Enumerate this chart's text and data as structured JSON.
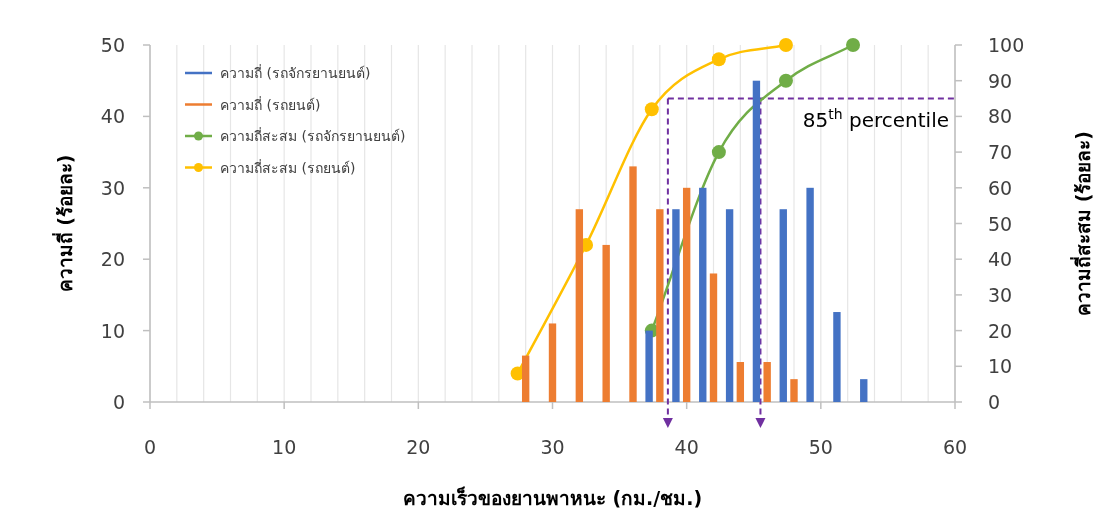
{
  "chart_data": {
    "type": "bar",
    "xlabel": "ความเร็วของยานพาหนะ (กม./ชม.)",
    "ylabel": "ความถี่ (ร้อยละ)",
    "y2label": "ความถี่สะสม (ร้อยละ)",
    "xlim": [
      0,
      60
    ],
    "xticks": [
      0,
      {
        "value": 2,
        "label": null
      },
      {
        "value": 4,
        "label": null
      },
      {
        "value": 6,
        "label": null
      },
      {
        "value": 8,
        "label": null
      },
      10,
      {
        "value": 12,
        "label": null
      },
      {
        "value": 14,
        "label": null
      },
      {
        "value": 16,
        "label": null
      },
      {
        "value": 18,
        "label": null
      },
      20,
      {
        "value": 22,
        "label": null
      },
      {
        "value": 24,
        "label": null
      },
      {
        "value": 26,
        "label": null
      },
      {
        "value": 28,
        "label": null
      },
      30,
      {
        "value": 32,
        "label": null
      },
      {
        "value": 34,
        "label": null
      },
      {
        "value": 36,
        "label": null
      },
      {
        "value": 38,
        "label": null
      },
      40,
      {
        "value": 42,
        "label": null
      },
      {
        "value": 44,
        "label": null
      },
      {
        "value": 46,
        "label": null
      },
      {
        "value": 48,
        "label": null
      },
      50,
      {
        "value": 52,
        "label": null
      },
      {
        "value": 54,
        "label": null
      },
      {
        "value": 56,
        "label": null
      },
      {
        "value": 58,
        "label": null
      },
      60
    ],
    "ylim": [
      0,
      50
    ],
    "yticks": [
      0,
      10,
      20,
      30,
      40,
      50
    ],
    "y2lim": [
      0,
      100
    ],
    "y2ticks": [
      0,
      10,
      20,
      30,
      40,
      50,
      60,
      70,
      80,
      90,
      100
    ],
    "grid": "x",
    "legend": "top left",
    "series": [
      {
        "name": "ความถี่ (รถจักรยานยนต์)",
        "color": "#4472c4",
        "x": [
          37.2,
          39.2,
          41.2,
          43.2,
          45.2,
          47.2,
          49.2,
          51.2,
          53.2
        ],
        "values": [
          10,
          27,
          30,
          27,
          45,
          27,
          30,
          12.6,
          3.2
        ]
      },
      {
        "name": "ความถี่ (รถยนต์)",
        "color": "#ed7d31",
        "x": [
          28,
          30,
          32,
          34,
          36,
          38,
          40,
          42,
          44,
          46,
          48
        ],
        "values": [
          6.5,
          11,
          27,
          22,
          33,
          27,
          30,
          18,
          5.6,
          5.6,
          3.2
        ]
      },
      {
        "name": "ความถี่สะสม (รถจักรยานยนต์)",
        "type": "line",
        "axis": "y2",
        "marker": "circle",
        "color": "#70ad47",
        "x": [
          37.4,
          42.4,
          47.4,
          52.4
        ],
        "values": [
          20,
          70,
          90,
          100
        ]
      },
      {
        "name": "ความถี่สะสม (รถยนต์)",
        "type": "line",
        "axis": "y2",
        "marker": "circle",
        "color": "#ffc000",
        "x": [
          27.4,
          32.5,
          37.4,
          42.4,
          47.4
        ],
        "values": [
          8,
          44,
          82,
          96,
          100
        ]
      }
    ],
    "ref_lines": [
      {
        "axis": "y2",
        "value": 85,
        "label": "85$^{th}$ percentile",
        "color": "#7030a0",
        "line_style": "dashed"
      },
      {
        "axis": "x",
        "value": 38.6,
        "color": "#7030a0",
        "line_style": "dashed"
      },
      {
        "axis": "x",
        "value": 45.5,
        "color": "#7030a0",
        "line_style": "dashed"
      }
    ]
  }
}
